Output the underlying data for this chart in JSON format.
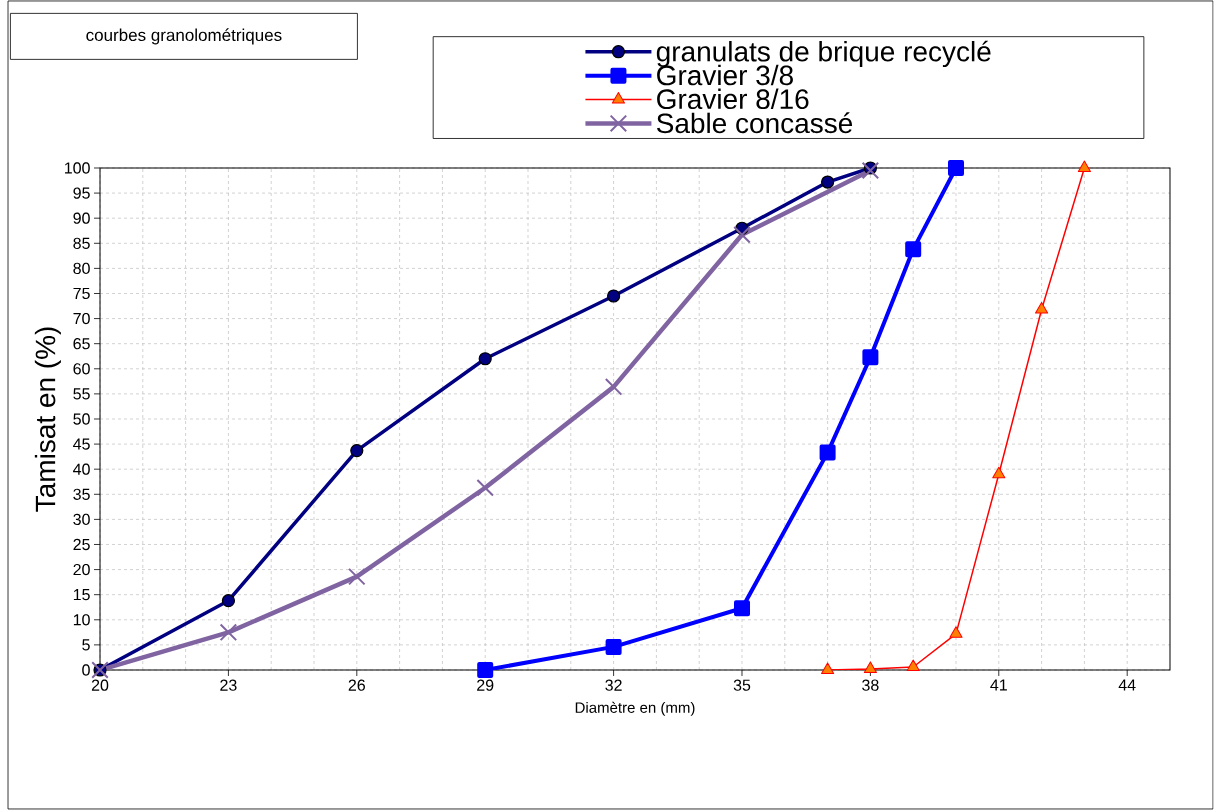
{
  "chart_data": {
    "type": "line",
    "title": "courbes granolométriques",
    "xlabel": "Diamètre en (mm)",
    "ylabel": "Tamisat en (%)",
    "xlim": [
      20,
      45
    ],
    "xticks": [
      20,
      23,
      26,
      29,
      32,
      35,
      38,
      41,
      44
    ],
    "ylim": [
      0,
      100
    ],
    "yticks": [
      0,
      5,
      10,
      15,
      20,
      25,
      30,
      35,
      40,
      45,
      50,
      55,
      60,
      65,
      70,
      75,
      80,
      85,
      90,
      95,
      100
    ],
    "grid": true,
    "legend": "top",
    "line_style": "solid",
    "series": [
      {
        "name": "granulats de brique recyclé",
        "color": "#000080",
        "marker": "circle",
        "x": [
          20,
          23,
          26,
          29,
          32,
          35,
          37,
          38
        ],
        "values": [
          0,
          13.8,
          43.7,
          62,
          74.5,
          88,
          97.2,
          100
        ]
      },
      {
        "name": "Gravier 3/8",
        "color": "#0000ff",
        "marker": "square",
        "x": [
          29,
          32,
          35,
          37,
          38,
          39,
          40
        ],
        "values": [
          0,
          4.6,
          12.3,
          43.3,
          62.3,
          83.8,
          100
        ]
      },
      {
        "name": "Gravier 8/16",
        "color": "#ff0000",
        "marker": "triangle",
        "x": [
          37,
          38,
          39,
          40,
          41,
          42,
          43
        ],
        "values": [
          0,
          0.2,
          0.6,
          7.2,
          39,
          71.8,
          100
        ]
      },
      {
        "name": "Sable concassé",
        "color": "#8064a2",
        "marker": "cross",
        "x": [
          20,
          23,
          26,
          29,
          32,
          35,
          38
        ],
        "values": [
          0,
          7.5,
          18.6,
          36.3,
          56.4,
          86.7,
          99.5
        ]
      }
    ]
  }
}
